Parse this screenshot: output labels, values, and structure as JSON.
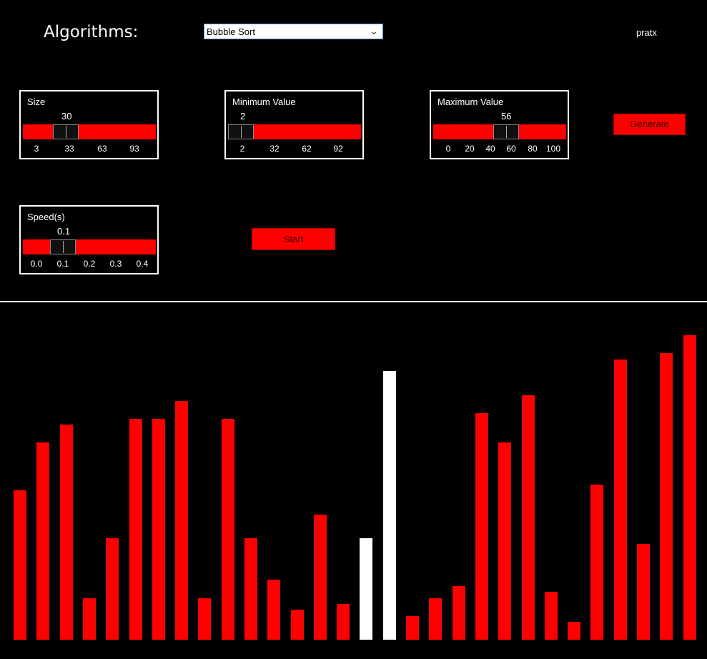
{
  "header": {
    "title": "Algorithms:",
    "algorithm_select": {
      "value": "Bubble Sort"
    },
    "author": "pratx"
  },
  "controls": {
    "size": {
      "label": "Size",
      "value": "30",
      "ticks": [
        "3",
        "33",
        "63",
        "93"
      ]
    },
    "min": {
      "label": "Minimum Value",
      "value": "2",
      "ticks": [
        "2",
        "32",
        "62",
        "92"
      ]
    },
    "max": {
      "label": "Maximum Value",
      "value": "56",
      "ticks": [
        "0",
        "20",
        "40",
        "60",
        "80",
        "100"
      ]
    },
    "speed": {
      "label": "Speed(s)",
      "value": "0.1",
      "ticks": [
        "0.0",
        "0.1",
        "0.2",
        "0.3",
        "0.4"
      ]
    },
    "generate_label": "Generate",
    "start_label": "Start"
  },
  "colors": {
    "bar": "#ff0000",
    "bar_active": "#ffffff",
    "background": "#000000"
  },
  "array": {
    "values": [
      25,
      33,
      36,
      7,
      17,
      37,
      37,
      40,
      7,
      37,
      17,
      10,
      5,
      21,
      6,
      17,
      45,
      4,
      7,
      9,
      38,
      33,
      41,
      8,
      3,
      26,
      47,
      16,
      48,
      51
    ],
    "active_indices": [
      15,
      16
    ]
  }
}
